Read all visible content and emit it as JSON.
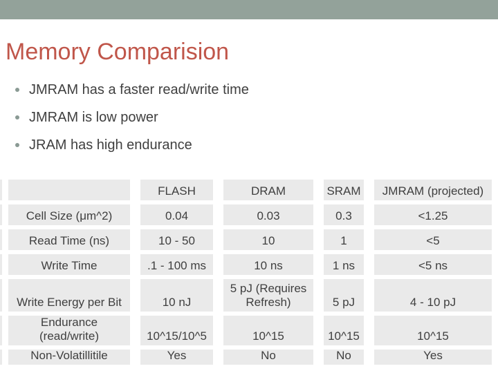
{
  "slide": {
    "title": "Memory Comparision",
    "bullets": [
      "JMRAM has a faster read/write time",
      "JMRAM is low power",
      "JRAM has high endurance"
    ],
    "table": {
      "headers": [
        "",
        "FLASH",
        "DRAM",
        "SRAM",
        "JMRAM (projected)"
      ],
      "rows": [
        {
          "label": "Cell Size (μm^2)",
          "values": [
            "0.04",
            "0.03",
            "0.3",
            "<1.25"
          ]
        },
        {
          "label": "Read Time (ns)",
          "values": [
            "10 - 50",
            "10",
            "1",
            "<5"
          ]
        },
        {
          "label": "Write Time",
          "values": [
            ".1 - 100 ms",
            "10 ns",
            "1 ns",
            "<5 ns"
          ]
        },
        {
          "label": "Write Energy per Bit",
          "values": [
            "10 nJ",
            "5 pJ (Requires Refresh)",
            "5 pJ",
            "4 - 10 pJ"
          ]
        },
        {
          "label": "Endurance\n(read/write)",
          "values": [
            "10^15/10^5",
            "10^15",
            "10^15",
            "10^15"
          ]
        },
        {
          "label": "Non-Volatillitile",
          "values": [
            "Yes",
            "No",
            "No",
            "Yes"
          ]
        }
      ]
    },
    "colors": {
      "top_bar": "#93A29A",
      "title": "#C0564A",
      "body_text": "#3F3F3F",
      "cell_bg": "#EAEAEA",
      "dot": "#8A9A94"
    }
  }
}
